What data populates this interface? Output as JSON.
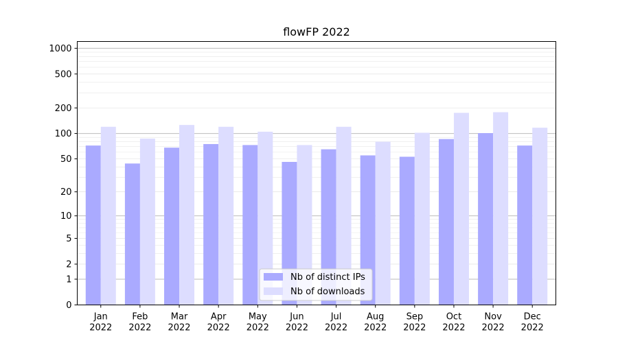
{
  "chart_data": {
    "type": "bar",
    "title": "flowFP 2022",
    "xlabel": "",
    "ylabel": "",
    "yscale": "symlog",
    "ylim": [
      0,
      1200
    ],
    "yticks": [
      0,
      1,
      2,
      5,
      10,
      20,
      50,
      100,
      200,
      500,
      1000
    ],
    "ytick_labels": [
      "0",
      "1",
      "2",
      "5",
      "10",
      "20",
      "50",
      "100",
      "200",
      "500",
      "1000"
    ],
    "grid": true,
    "legend_position": "lower-center",
    "categories": [
      [
        "Jan",
        "2022"
      ],
      [
        "Feb",
        "2022"
      ],
      [
        "Mar",
        "2022"
      ],
      [
        "Apr",
        "2022"
      ],
      [
        "May",
        "2022"
      ],
      [
        "Jun",
        "2022"
      ],
      [
        "Jul",
        "2022"
      ],
      [
        "Aug",
        "2022"
      ],
      [
        "Sep",
        "2022"
      ],
      [
        "Oct",
        "2022"
      ],
      [
        "Nov",
        "2022"
      ],
      [
        "Dec",
        "2022"
      ]
    ],
    "series": [
      {
        "name": "Nb of distinct IPs",
        "color": "#aaaaff",
        "values": [
          72,
          44,
          68,
          75,
          73,
          46,
          65,
          55,
          53,
          86,
          101,
          72
        ]
      },
      {
        "name": "Nb of downloads",
        "color": "#ddddff",
        "values": [
          120,
          87,
          126,
          120,
          105,
          73,
          120,
          80,
          102,
          175,
          178,
          117
        ]
      }
    ]
  }
}
